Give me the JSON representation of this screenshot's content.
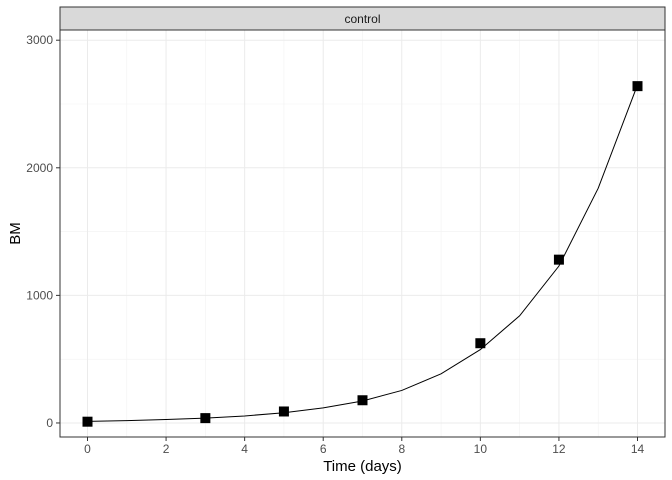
{
  "chart_data": {
    "type": "line",
    "facet_label": "control",
    "xlabel": "Time (days)",
    "ylabel": "BM",
    "xlim": [
      -0.7,
      14.7
    ],
    "ylim": [
      -110,
      3080
    ],
    "x_ticks": [
      0,
      2,
      4,
      6,
      8,
      10,
      12,
      14
    ],
    "y_ticks": [
      0,
      1000,
      2000,
      3000
    ],
    "grid": true,
    "legend": "none",
    "series": [
      {
        "kind": "line",
        "color": "#000000",
        "x": [
          0,
          1,
          2,
          3,
          4,
          5,
          6,
          7,
          8,
          9,
          10,
          11,
          12,
          13,
          14
        ],
        "y": [
          12,
          18,
          27,
          38,
          55,
          80,
          118,
          172,
          255,
          385,
          575,
          840,
          1230,
          1840,
          2650
        ]
      },
      {
        "kind": "points",
        "marker": "square",
        "color": "#000000",
        "x": [
          0,
          3,
          5,
          7,
          10,
          12,
          14
        ],
        "y": [
          10,
          38,
          90,
          178,
          625,
          1280,
          2640
        ]
      }
    ]
  },
  "colors": {
    "panel_border": "#333333",
    "strip_fill": "#d9d9d9",
    "grid": "#ebebeb",
    "data": "#000000"
  }
}
